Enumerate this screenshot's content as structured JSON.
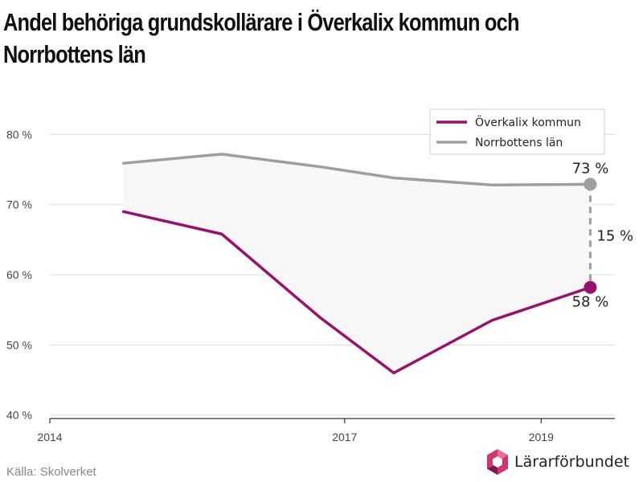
{
  "title": "Andel behöriga grundskollärare i Överkalix kommun och Norrbottens län",
  "source": "Källa: Skolverket",
  "brand": "Lärarförbundet",
  "colors": {
    "overkalix": "#9b0f6e",
    "norrbotten": "#9e9e9e",
    "area": "#f7f7f8",
    "grid": "#dddddd",
    "axis": "#333333"
  },
  "chart_data": {
    "type": "line",
    "x": [
      2014.75,
      2015.75,
      2016.75,
      2017.5,
      2018.5,
      2019.5
    ],
    "xlim": [
      2014,
      2019.75
    ],
    "ylim": [
      39.5,
      86
    ],
    "yticks": [
      40,
      50,
      60,
      70,
      80
    ],
    "ytick_labels": [
      "40 %",
      "50 %",
      "60 %",
      "70 %",
      "80 %"
    ],
    "xticks": [
      2014,
      2017,
      2019
    ],
    "xtick_labels": [
      "2014",
      "2017",
      "2019"
    ],
    "series": [
      {
        "name": "Överkalix kommun",
        "values": [
          69.0,
          65.8,
          53.9,
          46.0,
          53.5,
          58.2
        ]
      },
      {
        "name": "Norrbottens län",
        "values": [
          75.9,
          77.2,
          75.4,
          73.8,
          72.8,
          72.9
        ]
      }
    ],
    "legend_position": "top-right",
    "grid": true,
    "annotations": {
      "top_label": "73 %",
      "bottom_label": "58 %",
      "difference_label": "15 %"
    }
  }
}
